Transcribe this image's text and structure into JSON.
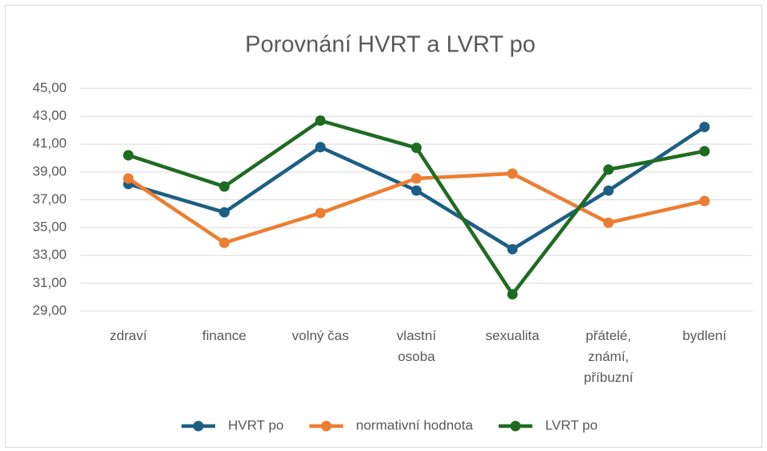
{
  "chart_data": {
    "type": "line",
    "title": "Porovnání HVRT a LVRT po",
    "categories": [
      "zdraví",
      "finance",
      "volný čas",
      "vlastní osoba",
      "sexualita",
      "přátelé, známí, příbuzní",
      "bydlení"
    ],
    "series": [
      {
        "name": "HVRT po",
        "color": "#1d5f84",
        "values": [
          38.13,
          36.1,
          40.78,
          37.66,
          33.45,
          37.66,
          42.23
        ]
      },
      {
        "name": "normativní hodnota",
        "color": "#ed7d31",
        "values": [
          38.53,
          33.91,
          36.05,
          38.53,
          38.88,
          35.35,
          36.91
        ]
      },
      {
        "name": "LVRT po",
        "color": "#1f6b22",
        "values": [
          40.2,
          37.95,
          42.69,
          40.73,
          30.21,
          39.17,
          40.49
        ]
      }
    ],
    "ylim": [
      29,
      45
    ],
    "yticks": [
      {
        "value": 29,
        "label": "29,00"
      },
      {
        "value": 31,
        "label": "31,00"
      },
      {
        "value": 33,
        "label": "33,00"
      },
      {
        "value": 35,
        "label": "35,00"
      },
      {
        "value": 37,
        "label": "37,00"
      },
      {
        "value": 39,
        "label": "39,00"
      },
      {
        "value": 41,
        "label": "41,00"
      },
      {
        "value": 43,
        "label": "43,00"
      },
      {
        "value": 45,
        "label": "45,00"
      }
    ],
    "grid": true,
    "legend": "bottom"
  }
}
